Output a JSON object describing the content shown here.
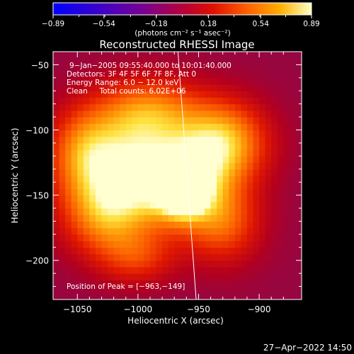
{
  "chart_data": {
    "type": "heatmap",
    "title": "Reconstructed RHESSI Image",
    "xlabel": "Heliocentric X (arcsec)",
    "ylabel": "Heliocentric Y (arcsec)",
    "xlim": [
      -1070,
      -865
    ],
    "ylim": [
      -230,
      -40
    ],
    "x_ticks": [
      -1050,
      -1000,
      -950,
      -900
    ],
    "x_tick_labels": [
      "−1050",
      "−1000",
      "−950",
      "−900"
    ],
    "y_ticks": [
      -50,
      -100,
      -150,
      -200
    ],
    "y_tick_labels": [
      "−50",
      "−100",
      "−150",
      "−200"
    ],
    "colorbar": {
      "colormap": "heat",
      "range": [
        -0.89,
        0.89
      ],
      "ticks": [
        -0.89,
        -0.54,
        -0.18,
        0.18,
        0.54,
        0.89
      ],
      "tick_labels": [
        "−0.89",
        "−0.54",
        "−0.18",
        "0.18",
        "0.54",
        "0.89"
      ],
      "unit_label": "(photons cm⁻² s⁻¹ asec⁻²)"
    },
    "annotations": [
      "9−Jan−2005 09:55:40.000 to 10:01:40.000",
      "Detectors: 3F 4F 5F 6F 7F 8F, Att 0",
      "Energy Range: 6.0 − 12.0 keV",
      "Clean     Total counts: 6.02E+06"
    ],
    "peak_label": "Position of Peak = [−963,−149]",
    "peak": {
      "x": -963,
      "y": -149
    },
    "limb_line": {
      "x": [
        -967,
        -952
      ],
      "y": [
        -40,
        -230
      ]
    },
    "sources": [
      {
        "x": -965,
        "y": -143,
        "sx": 23,
        "sy": 21,
        "amp": 0.48
      },
      {
        "x": -962,
        "y": -150,
        "sx": 11,
        "sy": 10,
        "amp": 0.38
      },
      {
        "x": -1010,
        "y": -125,
        "sx": 36,
        "sy": 28,
        "amp": 0.48
      },
      {
        "x": -930,
        "y": -110,
        "sx": 25,
        "sy": 22,
        "amp": 0.48
      },
      {
        "x": -990,
        "y": -85,
        "sx": 30,
        "sy": 18,
        "amp": 0.3
      },
      {
        "x": -1025,
        "y": -165,
        "sx": 25,
        "sy": 22,
        "amp": 0.36
      },
      {
        "x": -930,
        "y": -170,
        "sx": 22,
        "sy": 22,
        "amp": 0.3
      },
      {
        "x": -1000,
        "y": -198,
        "sx": 22,
        "sy": 14,
        "amp": 0.2
      },
      {
        "x": -1045,
        "y": -115,
        "sx": 18,
        "sy": 22,
        "amp": 0.2
      }
    ],
    "background_level": -0.4
  },
  "footer": {
    "timestamp": "27−Apr−2022 14:50"
  }
}
